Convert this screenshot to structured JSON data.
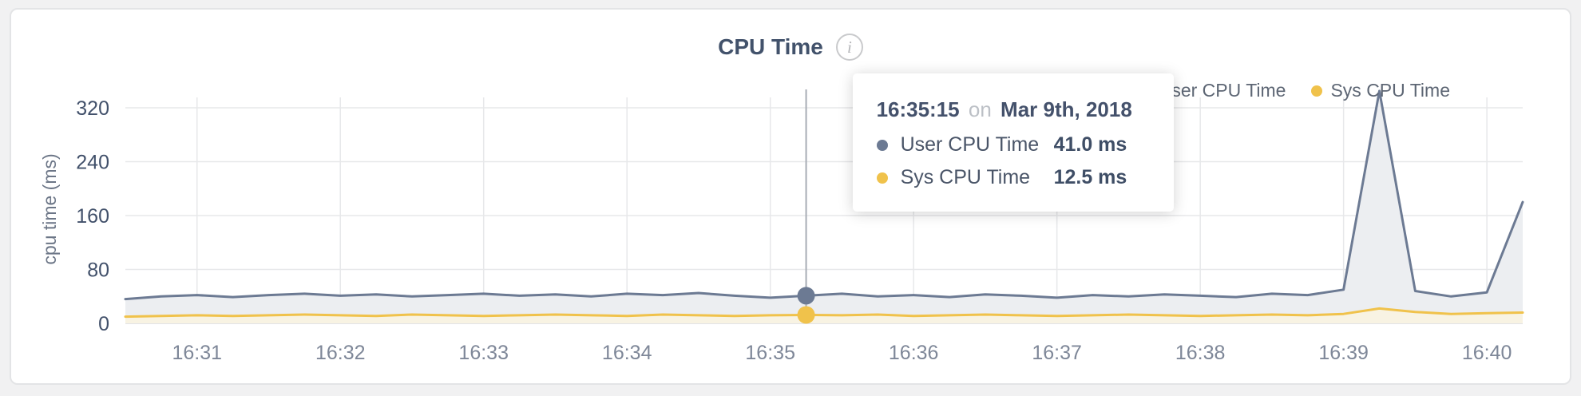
{
  "header": {
    "title": "CPU Time",
    "info_glyph": "i"
  },
  "legend": {
    "items": [
      {
        "label": "User CPU Time",
        "color": "#6c7a93"
      },
      {
        "label": "Sys CPU Time",
        "color": "#f0c24b"
      }
    ]
  },
  "tooltip": {
    "time": "16:35:15",
    "connector": "on",
    "date": "Mar 9th, 2018",
    "rows": [
      {
        "label": "User CPU Time",
        "value": "41.0 ms",
        "color": "#6c7a93"
      },
      {
        "label": "Sys CPU Time",
        "value": "12.5 ms",
        "color": "#f0c24b"
      }
    ]
  },
  "chart_data": {
    "type": "line",
    "title": "CPU Time",
    "xlabel": "",
    "ylabel": "cpu time (ms)",
    "ylim": [
      0,
      320
    ],
    "yticks": [
      0,
      80,
      160,
      240,
      320
    ],
    "xticks": [
      "16:31",
      "16:32",
      "16:33",
      "16:34",
      "16:35",
      "16:36",
      "16:37",
      "16:38",
      "16:39",
      "16:40"
    ],
    "grid": true,
    "legend_position": "top-right",
    "x": [
      "16:30:30",
      "16:30:45",
      "16:31:00",
      "16:31:15",
      "16:31:30",
      "16:31:45",
      "16:32:00",
      "16:32:15",
      "16:32:30",
      "16:32:45",
      "16:33:00",
      "16:33:15",
      "16:33:30",
      "16:33:45",
      "16:34:00",
      "16:34:15",
      "16:34:30",
      "16:34:45",
      "16:35:00",
      "16:35:15",
      "16:35:30",
      "16:35:45",
      "16:36:00",
      "16:36:15",
      "16:36:30",
      "16:36:45",
      "16:37:00",
      "16:37:15",
      "16:37:30",
      "16:37:45",
      "16:38:00",
      "16:38:15",
      "16:38:30",
      "16:38:45",
      "16:39:00",
      "16:39:15",
      "16:39:30",
      "16:39:45",
      "16:40:00",
      "16:40:15"
    ],
    "series": [
      {
        "name": "User CPU Time",
        "color": "#6c7a93",
        "fill": "#eceef1",
        "values": [
          36,
          40,
          42,
          39,
          42,
          44,
          41,
          43,
          40,
          42,
          44,
          41,
          43,
          40,
          44,
          42,
          45,
          41,
          38,
          41,
          44,
          40,
          42,
          39,
          43,
          41,
          38,
          42,
          40,
          43,
          41,
          39,
          44,
          42,
          50,
          345,
          48,
          40,
          46,
          180
        ]
      },
      {
        "name": "Sys CPU Time",
        "color": "#f0c24b",
        "fill": "#f8f3e3",
        "values": [
          10,
          11,
          12,
          11,
          12,
          13,
          12,
          11,
          13,
          12,
          11,
          12,
          13,
          12,
          11,
          13,
          12,
          11,
          12,
          12.5,
          12,
          13,
          11,
          12,
          13,
          12,
          11,
          12,
          13,
          12,
          11,
          12,
          13,
          12,
          14,
          22,
          17,
          14,
          15,
          16
        ]
      }
    ],
    "crosshair": {
      "time": "16:35:15",
      "values": {
        "User CPU Time": 41.0,
        "Sys CPU Time": 12.5
      }
    }
  }
}
